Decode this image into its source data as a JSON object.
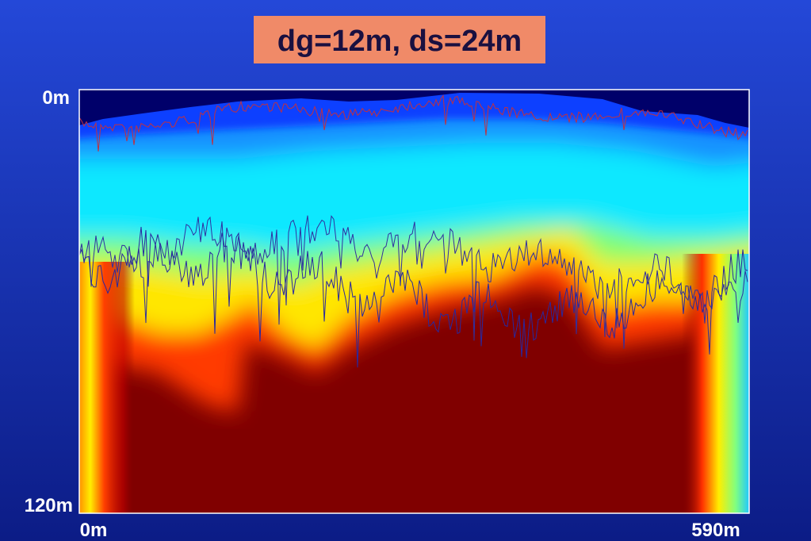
{
  "title": "dg=12m, ds=24m",
  "y_axis": {
    "top": "0m",
    "bottom": "120m"
  },
  "x_axis": {
    "left": "0m",
    "right": "590m"
  }
}
